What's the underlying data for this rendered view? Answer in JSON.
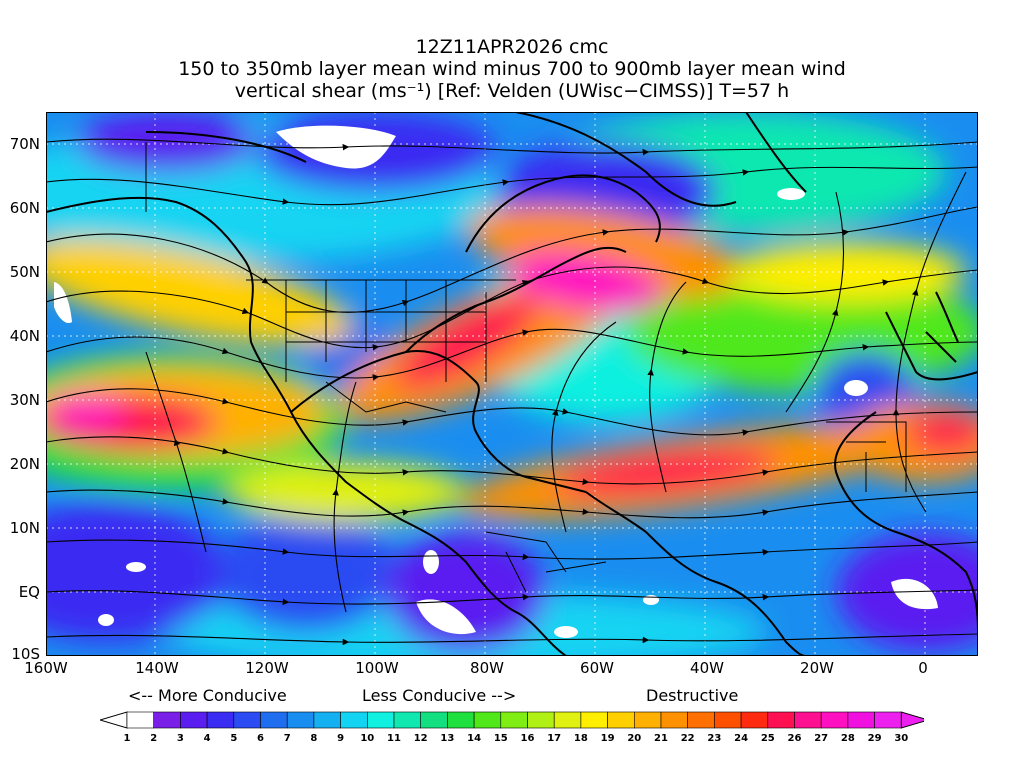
{
  "header": {
    "line1": "12Z11APR2026 cmc",
    "line2": "150 to 350mb layer mean wind minus 700 to 900mb layer mean wind",
    "line3": "vertical shear (ms⁻¹) [Ref: Velden (UWisc−CIMSS)] T=57 h"
  },
  "axes": {
    "lat_labels": [
      "70N",
      "60N",
      "50N",
      "40N",
      "30N",
      "20N",
      "10N",
      "EQ",
      "10S"
    ],
    "lon_labels": [
      "160W",
      "140W",
      "120W",
      "100W",
      "80W",
      "60W",
      "40W",
      "20W",
      "0"
    ]
  },
  "legend": {
    "more": "<-- More Conducive",
    "less": "Less Conducive -->",
    "destructive": "Destructive",
    "scale_labels": [
      "1",
      "2",
      "3",
      "4",
      "5",
      "6",
      "7",
      "8",
      "9",
      "10",
      "11",
      "12",
      "13",
      "14",
      "15",
      "16",
      "17",
      "18",
      "19",
      "20",
      "21",
      "22",
      "23",
      "24",
      "25",
      "26",
      "27",
      "28",
      "29",
      "30"
    ],
    "colors": [
      "#ffffff",
      "#7a1fe8",
      "#5a1ff0",
      "#3a2cf2",
      "#2a4cf2",
      "#1f6ef0",
      "#1a8ef0",
      "#14b0f2",
      "#12d4f2",
      "#10f0e0",
      "#10e8b0",
      "#12e080",
      "#20e040",
      "#50e81a",
      "#80ee14",
      "#b0f014",
      "#e0f010",
      "#ffee00",
      "#ffd000",
      "#ffb000",
      "#ff9000",
      "#ff7000",
      "#ff5000",
      "#ff2a10",
      "#ff1050",
      "#ff1090",
      "#ff10c0",
      "#f010e0",
      "#ee20f0"
    ]
  }
}
